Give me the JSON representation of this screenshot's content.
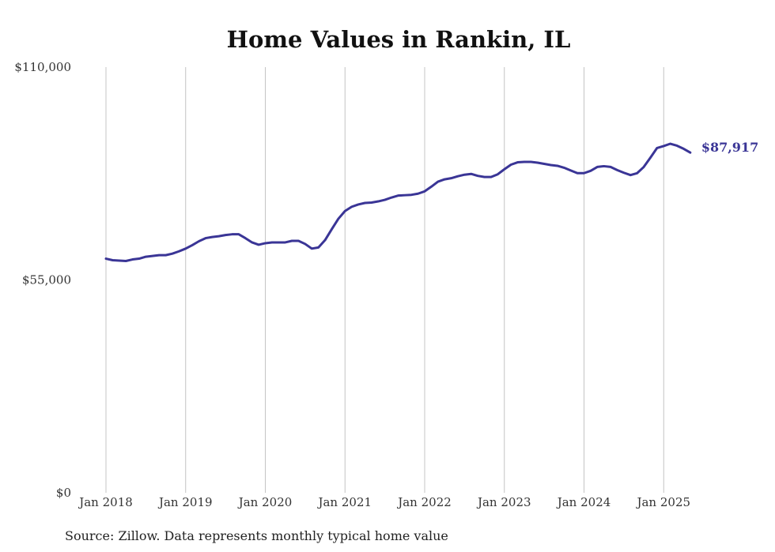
{
  "chart_data": {
    "type": "line",
    "title": "Home Values in Rankin, IL",
    "xlabel": "",
    "ylabel": "",
    "ylim": [
      0,
      110000
    ],
    "y_ticks": [
      {
        "value": 0,
        "label": "$0"
      },
      {
        "value": 55000,
        "label": "$55,000"
      },
      {
        "value": 110000,
        "label": "$110,000"
      }
    ],
    "x_ticks": [
      {
        "value": "2018-01",
        "label": "Jan 2018"
      },
      {
        "value": "2019-01",
        "label": "Jan 2019"
      },
      {
        "value": "2020-01",
        "label": "Jan 2020"
      },
      {
        "value": "2021-01",
        "label": "Jan 2021"
      },
      {
        "value": "2022-01",
        "label": "Jan 2022"
      },
      {
        "value": "2023-01",
        "label": "Jan 2023"
      },
      {
        "value": "2024-01",
        "label": "Jan 2024"
      },
      {
        "value": "2025-01",
        "label": "Jan 2025"
      }
    ],
    "grid": {
      "vertical": true,
      "horizontal": false
    },
    "line_color": "#3a3596",
    "end_label": "$87,917",
    "source": "Source: Zillow. Data represents monthly typical home value",
    "series": [
      {
        "x": [
          "2018-01",
          "2018-02",
          "2018-03",
          "2018-04",
          "2018-05",
          "2018-06",
          "2018-07",
          "2018-08",
          "2018-09",
          "2018-10",
          "2018-11",
          "2018-12",
          "2019-01",
          "2019-02",
          "2019-03",
          "2019-04",
          "2019-05",
          "2019-06",
          "2019-07",
          "2019-08",
          "2019-09",
          "2019-10",
          "2019-11",
          "2019-12",
          "2020-01",
          "2020-02",
          "2020-03",
          "2020-04",
          "2020-05",
          "2020-06",
          "2020-07",
          "2020-08",
          "2020-09",
          "2020-10",
          "2020-11",
          "2020-12",
          "2021-01",
          "2021-02",
          "2021-03",
          "2021-04",
          "2021-05",
          "2021-06",
          "2021-07",
          "2021-08",
          "2021-09",
          "2021-10",
          "2021-11",
          "2021-12",
          "2022-01",
          "2022-02",
          "2022-03",
          "2022-04",
          "2022-05",
          "2022-06",
          "2022-07",
          "2022-08",
          "2022-09",
          "2022-10",
          "2022-11",
          "2022-12",
          "2023-01",
          "2023-02",
          "2023-03",
          "2023-04",
          "2023-05",
          "2023-06",
          "2023-07",
          "2023-08",
          "2023-09",
          "2023-10",
          "2023-11",
          "2023-12",
          "2024-01",
          "2024-02",
          "2024-03",
          "2024-04",
          "2024-05",
          "2024-06",
          "2024-07",
          "2024-08",
          "2024-09",
          "2024-10",
          "2024-11",
          "2024-12",
          "2025-01",
          "2025-02",
          "2025-03",
          "2025-04",
          "2025-05"
        ],
        "values": [
          60500,
          60100,
          60000,
          59900,
          60300,
          60500,
          61000,
          61200,
          61400,
          61400,
          61800,
          62400,
          63100,
          64000,
          65000,
          65800,
          66100,
          66300,
          66600,
          66800,
          66800,
          65800,
          64700,
          64100,
          64500,
          64700,
          64700,
          64700,
          65100,
          65100,
          64300,
          63100,
          63400,
          65300,
          68100,
          70800,
          72800,
          73900,
          74500,
          74900,
          75000,
          75300,
          75700,
          76300,
          76800,
          76900,
          77000,
          77300,
          77900,
          79100,
          80400,
          81000,
          81300,
          81800,
          82200,
          82400,
          81900,
          81600,
          81600,
          82300,
          83600,
          84800,
          85400,
          85500,
          85500,
          85300,
          85000,
          84700,
          84500,
          84000,
          83300,
          82600,
          82600,
          83200,
          84200,
          84400,
          84200,
          83400,
          82700,
          82100,
          82600,
          84200,
          86600,
          89100,
          89600,
          90200,
          89700,
          88900,
          87917
        ]
      }
    ]
  }
}
